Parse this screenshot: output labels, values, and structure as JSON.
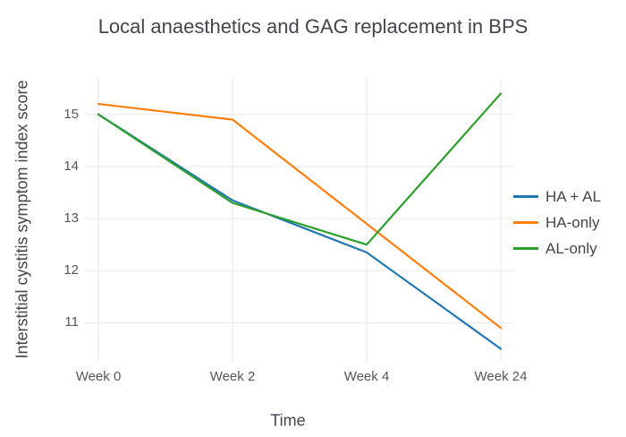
{
  "chart_data": {
    "type": "line",
    "title": "Local anaesthetics and GAG replacement in BPS",
    "xlabel": "Time",
    "ylabel": "Interstitial cystitis symptom index score",
    "categories": [
      "Week 0",
      "Week 2",
      "Week 4",
      "Week 24"
    ],
    "series": [
      {
        "name": "HA + AL",
        "color": "#1f77b4",
        "values": [
          15.0,
          13.35,
          12.35,
          10.5
        ]
      },
      {
        "name": "HA-only",
        "color": "#ff7f0e",
        "values": [
          15.2,
          14.9,
          12.9,
          10.9
        ]
      },
      {
        "name": "AL-only",
        "color": "#2ca02c",
        "values": [
          15.0,
          13.3,
          12.5,
          15.4
        ]
      }
    ],
    "yticks": [
      11,
      12,
      13,
      14,
      15
    ],
    "ylim": [
      10.32,
      15.7
    ],
    "grid": true,
    "grid_color": "#e9e9e9",
    "background": "#ffffff",
    "legend_position": "right-middle"
  }
}
